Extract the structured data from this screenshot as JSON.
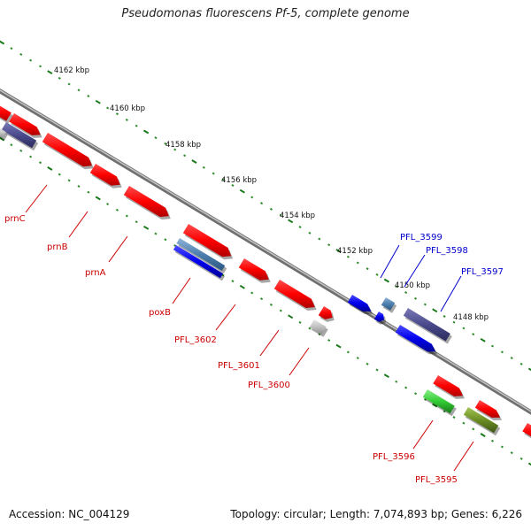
{
  "title": "Pseudomonas fluorescens Pf-5, complete genome",
  "footer": {
    "accession": "Accession: NC_004129",
    "summary": "Topology: circular; Length: 7,074,893 bp; Genes: 6,226"
  },
  "colors": {
    "backbone": "#8a8a8a",
    "tick_major": "#1a7a1a",
    "tick_minor": "#2e8b2e",
    "red_gene": "#ff0000",
    "blue_gene": "#0000ee",
    "steel_gene": "#4d7fae",
    "purple_gene": "#4a4a8c",
    "gray_gene": "#c0c0c0",
    "green_gene": "#33cc33",
    "olive_gene": "#6b8e23",
    "red_label": "#cc0000",
    "blue_label": "#0000cc"
  },
  "ticks": [
    {
      "label": "4162 kbp"
    },
    {
      "label": "4160 kbp"
    },
    {
      "label": "4158 kbp"
    },
    {
      "label": "4156 kbp"
    },
    {
      "label": "4154 kbp"
    },
    {
      "label": "4152 kbp"
    },
    {
      "label": "4150 kbp"
    },
    {
      "label": "4148 kbp"
    }
  ],
  "gene_labels": [
    {
      "name": "prnC",
      "color": "red"
    },
    {
      "name": "prnB",
      "color": "red"
    },
    {
      "name": "prnA",
      "color": "red"
    },
    {
      "name": "poxB",
      "color": "red"
    },
    {
      "name": "PFL_3602",
      "color": "red"
    },
    {
      "name": "PFL_3601",
      "color": "red"
    },
    {
      "name": "PFL_3600",
      "color": "red"
    },
    {
      "name": "PFL_3599",
      "color": "blue"
    },
    {
      "name": "PFL_3598",
      "color": "blue"
    },
    {
      "name": "PFL_3597",
      "color": "blue"
    },
    {
      "name": "PFL_3596",
      "color": "red"
    },
    {
      "name": "PFL_3595",
      "color": "red"
    }
  ]
}
